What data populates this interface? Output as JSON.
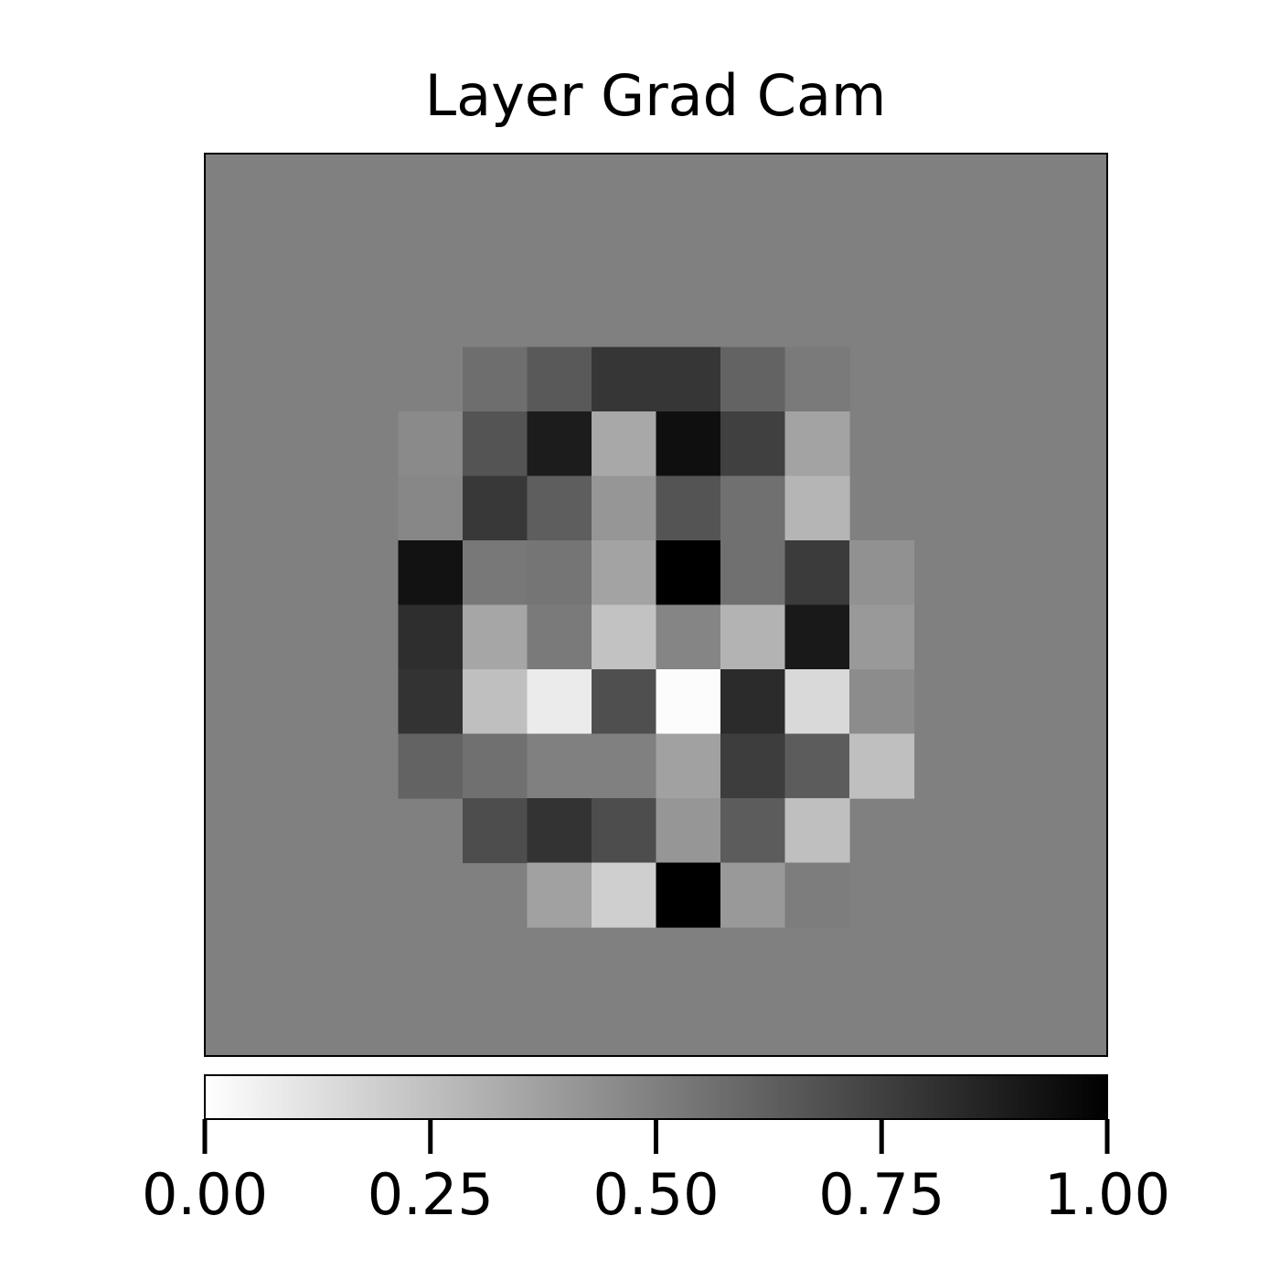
{
  "chart_data": {
    "type": "heatmap",
    "title": "Layer Grad Cam",
    "rows": 14,
    "cols": 14,
    "colormap": "gray_r",
    "background_value": 0.5,
    "vmin": 0.0,
    "vmax": 1.0,
    "cells": [
      {
        "r": 3,
        "c": 4,
        "v": 0.57
      },
      {
        "r": 3,
        "c": 5,
        "v": 0.65
      },
      {
        "r": 3,
        "c": 6,
        "v": 0.79
      },
      {
        "r": 3,
        "c": 7,
        "v": 0.79
      },
      {
        "r": 3,
        "c": 8,
        "v": 0.61
      },
      {
        "r": 3,
        "c": 9,
        "v": 0.52
      },
      {
        "r": 4,
        "c": 3,
        "v": 0.46
      },
      {
        "r": 4,
        "c": 4,
        "v": 0.67
      },
      {
        "r": 4,
        "c": 5,
        "v": 0.89
      },
      {
        "r": 4,
        "c": 6,
        "v": 0.34
      },
      {
        "r": 4,
        "c": 7,
        "v": 0.94
      },
      {
        "r": 4,
        "c": 8,
        "v": 0.75
      },
      {
        "r": 4,
        "c": 9,
        "v": 0.36
      },
      {
        "r": 5,
        "c": 3,
        "v": 0.47
      },
      {
        "r": 5,
        "c": 4,
        "v": 0.78
      },
      {
        "r": 5,
        "c": 5,
        "v": 0.63
      },
      {
        "r": 5,
        "c": 6,
        "v": 0.41
      },
      {
        "r": 5,
        "c": 7,
        "v": 0.67
      },
      {
        "r": 5,
        "c": 8,
        "v": 0.56
      },
      {
        "r": 5,
        "c": 9,
        "v": 0.29
      },
      {
        "r": 6,
        "c": 3,
        "v": 0.93
      },
      {
        "r": 6,
        "c": 4,
        "v": 0.53
      },
      {
        "r": 6,
        "c": 5,
        "v": 0.54
      },
      {
        "r": 6,
        "c": 6,
        "v": 0.36
      },
      {
        "r": 6,
        "c": 7,
        "v": 1.0
      },
      {
        "r": 6,
        "c": 8,
        "v": 0.56
      },
      {
        "r": 6,
        "c": 9,
        "v": 0.77
      },
      {
        "r": 6,
        "c": 10,
        "v": 0.43
      },
      {
        "r": 7,
        "c": 3,
        "v": 0.82
      },
      {
        "r": 7,
        "c": 4,
        "v": 0.35
      },
      {
        "r": 7,
        "c": 5,
        "v": 0.52
      },
      {
        "r": 7,
        "c": 6,
        "v": 0.24
      },
      {
        "r": 7,
        "c": 7,
        "v": 0.48
      },
      {
        "r": 7,
        "c": 8,
        "v": 0.3
      },
      {
        "r": 7,
        "c": 9,
        "v": 0.9
      },
      {
        "r": 7,
        "c": 10,
        "v": 0.4
      },
      {
        "r": 8,
        "c": 3,
        "v": 0.8
      },
      {
        "r": 8,
        "c": 4,
        "v": 0.25
      },
      {
        "r": 8,
        "c": 5,
        "v": 0.08
      },
      {
        "r": 8,
        "c": 6,
        "v": 0.69
      },
      {
        "r": 8,
        "c": 7,
        "v": 0.01
      },
      {
        "r": 8,
        "c": 8,
        "v": 0.83
      },
      {
        "r": 8,
        "c": 9,
        "v": 0.15
      },
      {
        "r": 8,
        "c": 10,
        "v": 0.45
      },
      {
        "r": 9,
        "c": 3,
        "v": 0.61
      },
      {
        "r": 9,
        "c": 4,
        "v": 0.56
      },
      {
        "r": 9,
        "c": 5,
        "v": 0.5
      },
      {
        "r": 9,
        "c": 6,
        "v": 0.5
      },
      {
        "r": 9,
        "c": 7,
        "v": 0.37
      },
      {
        "r": 9,
        "c": 8,
        "v": 0.76
      },
      {
        "r": 9,
        "c": 9,
        "v": 0.64
      },
      {
        "r": 9,
        "c": 10,
        "v": 0.25
      },
      {
        "r": 10,
        "c": 4,
        "v": 0.7
      },
      {
        "r": 10,
        "c": 5,
        "v": 0.8
      },
      {
        "r": 10,
        "c": 6,
        "v": 0.7
      },
      {
        "r": 10,
        "c": 7,
        "v": 0.41
      },
      {
        "r": 10,
        "c": 8,
        "v": 0.64
      },
      {
        "r": 10,
        "c": 9,
        "v": 0.25
      },
      {
        "r": 11,
        "c": 5,
        "v": 0.37
      },
      {
        "r": 11,
        "c": 6,
        "v": 0.19
      },
      {
        "r": 11,
        "c": 7,
        "v": 1.0
      },
      {
        "r": 11,
        "c": 8,
        "v": 0.4
      },
      {
        "r": 11,
        "c": 9,
        "v": 0.51
      }
    ],
    "colorbar": {
      "orientation": "horizontal",
      "ticks": [
        0.0,
        0.25,
        0.5,
        0.75,
        1.0
      ],
      "tick_labels": [
        "0.00",
        "0.25",
        "0.50",
        "0.75",
        "1.00"
      ]
    }
  }
}
